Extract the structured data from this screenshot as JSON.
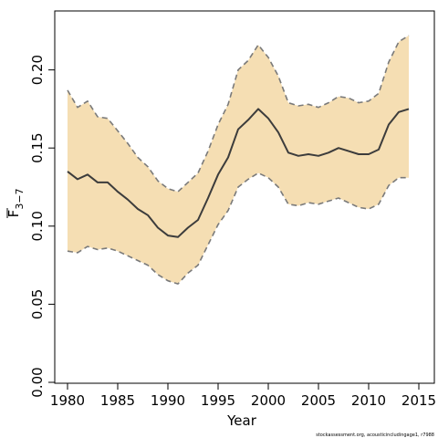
{
  "chart_data": {
    "type": "line",
    "xlabel": "Year",
    "ylabel_main": "F",
    "ylabel_sub": "3−7",
    "xlim": [
      1980,
      2014
    ],
    "ylim": [
      0,
      0.22
    ],
    "xticks": [
      1980,
      1985,
      1990,
      1995,
      2000,
      2005,
      2010,
      2015
    ],
    "yticks": [
      "0.00",
      "0.05",
      "0.10",
      "0.15",
      "0.20"
    ],
    "x": [
      1980,
      1981,
      1982,
      1983,
      1984,
      1985,
      1986,
      1987,
      1988,
      1989,
      1990,
      1991,
      1992,
      1993,
      1994,
      1995,
      1996,
      1997,
      1998,
      1999,
      2000,
      2001,
      2002,
      2003,
      2004,
      2005,
      2006,
      2007,
      2008,
      2009,
      2010,
      2011,
      2012,
      2013,
      2014
    ],
    "series": [
      {
        "role": "estimate",
        "values": [
          0.135,
          0.13,
          0.133,
          0.128,
          0.128,
          0.122,
          0.117,
          0.111,
          0.107,
          0.099,
          0.094,
          0.093,
          0.099,
          0.104,
          0.118,
          0.133,
          0.144,
          0.162,
          0.168,
          0.175,
          0.169,
          0.16,
          0.147,
          0.145,
          0.146,
          0.145,
          0.147,
          0.15,
          0.148,
          0.146,
          0.146,
          0.149,
          0.165,
          0.173,
          0.175
        ]
      },
      {
        "role": "upper-bound",
        "values": [
          0.187,
          0.176,
          0.18,
          0.17,
          0.169,
          0.161,
          0.153,
          0.144,
          0.138,
          0.129,
          0.124,
          0.122,
          0.128,
          0.134,
          0.148,
          0.165,
          0.178,
          0.2,
          0.206,
          0.216,
          0.208,
          0.196,
          0.179,
          0.177,
          0.178,
          0.176,
          0.179,
          0.183,
          0.182,
          0.179,
          0.18,
          0.185,
          0.205,
          0.218,
          0.222
        ]
      },
      {
        "role": "lower-bound",
        "values": [
          0.084,
          0.083,
          0.087,
          0.085,
          0.086,
          0.084,
          0.081,
          0.078,
          0.075,
          0.069,
          0.065,
          0.063,
          0.07,
          0.075,
          0.088,
          0.101,
          0.11,
          0.125,
          0.13,
          0.134,
          0.131,
          0.125,
          0.114,
          0.113,
          0.115,
          0.114,
          0.116,
          0.118,
          0.115,
          0.112,
          0.111,
          0.114,
          0.126,
          0.131,
          0.131
        ]
      }
    ],
    "colors": {
      "band": "#f5deb3",
      "band_edge": "#7a7a7a",
      "line": "#3c3c3c",
      "frame": "#000000"
    },
    "credit": "stockassessment.org, acousticincludingage1, r7988"
  }
}
